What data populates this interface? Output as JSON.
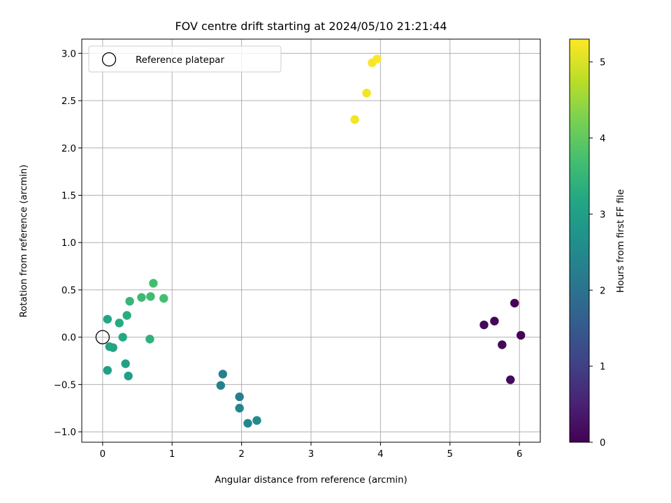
{
  "chart_data": {
    "type": "scatter",
    "title": "FOV centre drift starting at 2024/05/10 21:21:44",
    "xlabel": "Angular distance from reference (arcmin)",
    "ylabel": "Rotation from reference (arcmin)",
    "xlim": [
      -0.3,
      6.3
    ],
    "ylim": [
      -1.11,
      3.15
    ],
    "x_ticks": [
      0,
      1,
      2,
      3,
      4,
      5,
      6
    ],
    "y_ticks": [
      -1.0,
      -0.5,
      0.0,
      0.5,
      1.0,
      1.5,
      2.0,
      2.5,
      3.0
    ],
    "grid": true,
    "legend": {
      "position": "upper-left",
      "entries": [
        "Reference platepar"
      ]
    },
    "reference_point": {
      "x": 0,
      "y": 0
    },
    "colorbar": {
      "label": "Hours from first FF file",
      "colormap": "viridis",
      "range": [
        0,
        5.3
      ],
      "ticks": [
        0,
        1,
        2,
        3,
        4,
        5
      ]
    },
    "series": [
      {
        "points": [
          {
            "x": 5.93,
            "y": 0.36,
            "c": 0.05
          },
          {
            "x": 5.64,
            "y": 0.17,
            "c": 0.08
          },
          {
            "x": 5.49,
            "y": 0.13,
            "c": 0.1
          },
          {
            "x": 6.02,
            "y": 0.02,
            "c": 0.06
          },
          {
            "x": 5.75,
            "y": -0.08,
            "c": 0.12
          },
          {
            "x": 5.87,
            "y": -0.45,
            "c": 0.15
          },
          {
            "x": 1.73,
            "y": -0.39,
            "c": 2.3
          },
          {
            "x": 1.7,
            "y": -0.51,
            "c": 2.35
          },
          {
            "x": 1.97,
            "y": -0.63,
            "c": 2.25
          },
          {
            "x": 1.97,
            "y": -0.75,
            "c": 2.4
          },
          {
            "x": 2.09,
            "y": -0.91,
            "c": 2.45
          },
          {
            "x": 2.22,
            "y": -0.88,
            "c": 2.5
          },
          {
            "x": 0.07,
            "y": 0.19,
            "c": 3.15
          },
          {
            "x": 0.24,
            "y": 0.15,
            "c": 3.25
          },
          {
            "x": 0.35,
            "y": 0.23,
            "c": 3.3
          },
          {
            "x": 0.29,
            "y": 0.0,
            "c": 3.2
          },
          {
            "x": 0.1,
            "y": -0.1,
            "c": 3.1
          },
          {
            "x": 0.15,
            "y": -0.11,
            "c": 3.1
          },
          {
            "x": 0.07,
            "y": -0.35,
            "c": 3.0
          },
          {
            "x": 0.33,
            "y": -0.28,
            "c": 3.05
          },
          {
            "x": 0.37,
            "y": -0.41,
            "c": 3.0
          },
          {
            "x": 0.68,
            "y": -0.02,
            "c": 3.4
          },
          {
            "x": 0.39,
            "y": 0.38,
            "c": 3.5
          },
          {
            "x": 0.56,
            "y": 0.42,
            "c": 3.6
          },
          {
            "x": 0.69,
            "y": 0.43,
            "c": 3.65
          },
          {
            "x": 0.73,
            "y": 0.57,
            "c": 3.7
          },
          {
            "x": 0.88,
            "y": 0.41,
            "c": 3.7
          },
          {
            "x": 3.63,
            "y": 2.3,
            "c": 5.2
          },
          {
            "x": 3.8,
            "y": 2.58,
            "c": 5.2
          },
          {
            "x": 3.88,
            "y": 2.9,
            "c": 5.25
          },
          {
            "x": 3.95,
            "y": 2.94,
            "c": 5.3
          }
        ]
      }
    ]
  }
}
